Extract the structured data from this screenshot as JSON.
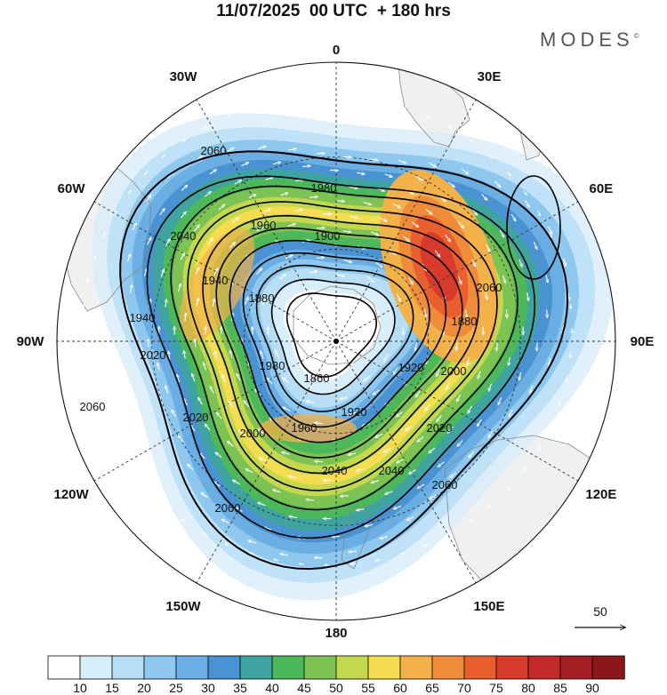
{
  "header": {
    "title": "11/07/2025  00 UTC  + 180 hrs",
    "brand": "MODES",
    "brand_mark": "©"
  },
  "map": {
    "projection": "polar stereographic (south pole)",
    "longitude_labels": [
      {
        "name": "0",
        "deg": 0
      },
      {
        "name": "30E",
        "deg": 30
      },
      {
        "name": "60E",
        "deg": 60
      },
      {
        "name": "90E",
        "deg": 90
      },
      {
        "name": "120E",
        "deg": 120
      },
      {
        "name": "150E",
        "deg": 150
      },
      {
        "name": "180",
        "deg": 180
      },
      {
        "name": "150W",
        "deg": -150
      },
      {
        "name": "120W",
        "deg": -120
      },
      {
        "name": "90W",
        "deg": -90
      },
      {
        "name": "60W",
        "deg": -60
      },
      {
        "name": "30W",
        "deg": -30
      }
    ],
    "geopotential_contours": [
      {
        "value": "1860",
        "type": "closed"
      },
      {
        "value": "1880",
        "type": "closed"
      },
      {
        "value": "1900",
        "type": "closed"
      },
      {
        "value": "1920",
        "type": "closed"
      },
      {
        "value": "1940",
        "type": "closed"
      },
      {
        "value": "1960",
        "type": "closed"
      },
      {
        "value": "1980",
        "type": "closed"
      },
      {
        "value": "2000",
        "type": "closed"
      },
      {
        "value": "2020",
        "type": "closed"
      },
      {
        "value": "2040",
        "type": "closed"
      },
      {
        "value": "2060",
        "type": "closed"
      }
    ],
    "contour_label_list": [
      "1860",
      "1880",
      "1900",
      "1920",
      "1940",
      "1960",
      "1980",
      "2000",
      "2020",
      "2040",
      "2060"
    ],
    "vector_reference": {
      "value": "50"
    },
    "colors": {
      "land": "#f0f0f0",
      "coast": "#888888",
      "contour": "#000000",
      "vector": "#ffffff"
    }
  },
  "colorbar": {
    "ticks": [
      "10",
      "15",
      "20",
      "25",
      "30",
      "35",
      "40",
      "45",
      "50",
      "55",
      "60",
      "65",
      "70",
      "75",
      "80",
      "85",
      "90"
    ],
    "colors": [
      "#ffffff",
      "#d8eefb",
      "#b8def6",
      "#8fc8ee",
      "#6aaee3",
      "#4a93d2",
      "#3fa4a0",
      "#4cb85a",
      "#7cc353",
      "#c3d84e",
      "#f6dc50",
      "#f3b249",
      "#ef8c3a",
      "#e9602e",
      "#d83b2c",
      "#c22a2a",
      "#a31f23",
      "#8a1818"
    ]
  }
}
